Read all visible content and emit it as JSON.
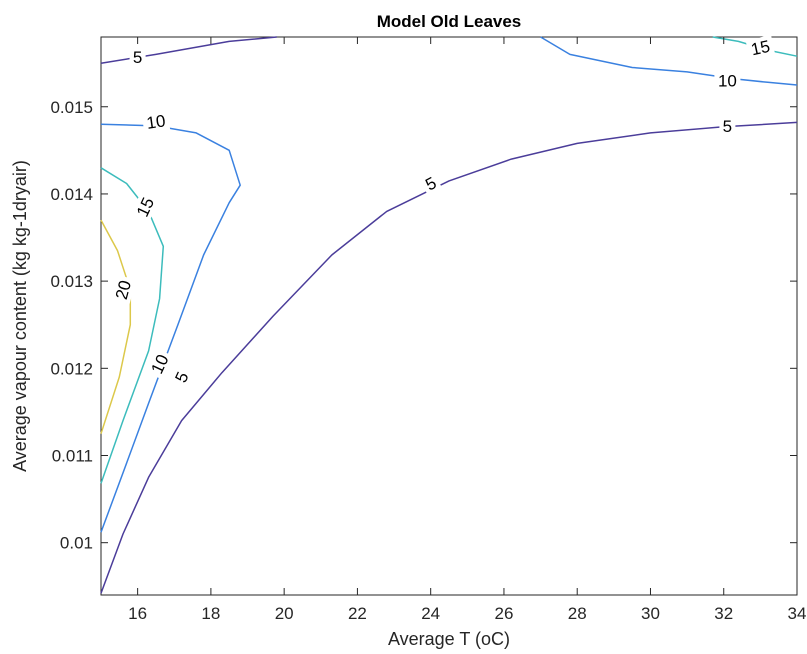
{
  "chart_data": {
    "type": "contour",
    "title": "Model Old Leaves",
    "xlabel": "Average T (oC)",
    "ylabel": "Average vapour content (kg kg-1dryair)",
    "xlim": [
      15,
      34
    ],
    "ylim": [
      0.0094,
      0.0158
    ],
    "xticks": [
      "16",
      "18",
      "20",
      "22",
      "24",
      "26",
      "28",
      "30",
      "32",
      "34"
    ],
    "yticks": [
      "0.01",
      "0.011",
      "0.012",
      "0.013",
      "0.014",
      "0.015"
    ],
    "levels": [
      {
        "level": "5",
        "color": "#4b3d9a",
        "lines": [
          [
            [
              15.0,
              0.00942
            ],
            [
              15.6,
              0.0101
            ],
            [
              16.3,
              0.01075
            ],
            [
              17.2,
              0.0114
            ],
            [
              18.3,
              0.01195
            ],
            [
              19.7,
              0.0126
            ],
            [
              21.3,
              0.0133
            ],
            [
              22.8,
              0.0138
            ],
            [
              24.5,
              0.01415
            ],
            [
              26.2,
              0.0144
            ],
            [
              28.0,
              0.01458
            ],
            [
              30.0,
              0.0147
            ],
            [
              32.0,
              0.01477
            ],
            [
              34.0,
              0.01482
            ]
          ],
          [
            [
              15.0,
              0.0155
            ],
            [
              16.5,
              0.0156
            ],
            [
              18.5,
              0.01575
            ],
            [
              19.8,
              0.0158
            ]
          ]
        ],
        "labels": [
          [
            17.2,
            0.0119,
            -65
          ],
          [
            24.0,
            0.01412,
            -28
          ],
          [
            32.1,
            0.01478,
            0
          ],
          [
            16.0,
            0.01557,
            0
          ]
        ]
      },
      {
        "level": "10",
        "color": "#3a81e0",
        "lines": [
          [
            [
              15.0,
              0.01012
            ],
            [
              15.6,
              0.0108
            ],
            [
              16.3,
              0.0116
            ],
            [
              17.1,
              0.0125
            ],
            [
              17.8,
              0.0133
            ],
            [
              18.5,
              0.0139
            ],
            [
              18.8,
              0.0141
            ],
            [
              18.5,
              0.0145
            ],
            [
              17.6,
              0.0147
            ],
            [
              16.5,
              0.01478
            ],
            [
              15.0,
              0.0148
            ]
          ],
          [
            [
              27.0,
              0.0158
            ],
            [
              27.8,
              0.0156
            ],
            [
              29.5,
              0.01545
            ],
            [
              31.0,
              0.0154
            ],
            [
              32.3,
              0.01532
            ],
            [
              33.2,
              0.01528
            ],
            [
              34.0,
              0.01525
            ]
          ]
        ],
        "labels": [
          [
            16.6,
            0.01205,
            -65
          ],
          [
            16.5,
            0.01483,
            -8
          ],
          [
            32.1,
            0.0153,
            0
          ]
        ]
      },
      {
        "level": "15",
        "color": "#3cbcbc",
        "lines": [
          [
            [
              15.0,
              0.01068
            ],
            [
              15.6,
              0.0114
            ],
            [
              16.3,
              0.0122
            ],
            [
              16.6,
              0.0128
            ],
            [
              16.7,
              0.0134
            ],
            [
              16.3,
              0.0138
            ],
            [
              15.7,
              0.01412
            ],
            [
              15.0,
              0.0143
            ]
          ],
          [
            [
              31.7,
              0.0158
            ],
            [
              32.4,
              0.01575
            ],
            [
              33.2,
              0.01565
            ],
            [
              34.0,
              0.01558
            ]
          ]
        ],
        "labels": [
          [
            16.2,
            0.01385,
            -65
          ],
          [
            33.0,
            0.01568,
            -12
          ]
        ]
      },
      {
        "level": "20",
        "color": "#dcc84a",
        "lines": [
          [
            [
              15.0,
              0.01125
            ],
            [
              15.5,
              0.0119
            ],
            [
              15.8,
              0.0125
            ],
            [
              15.8,
              0.0129
            ],
            [
              15.45,
              0.01335
            ],
            [
              15.0,
              0.0137
            ]
          ]
        ],
        "labels": [
          [
            15.6,
            0.0129,
            -75
          ]
        ]
      }
    ],
    "grid": false,
    "legend": "none"
  }
}
